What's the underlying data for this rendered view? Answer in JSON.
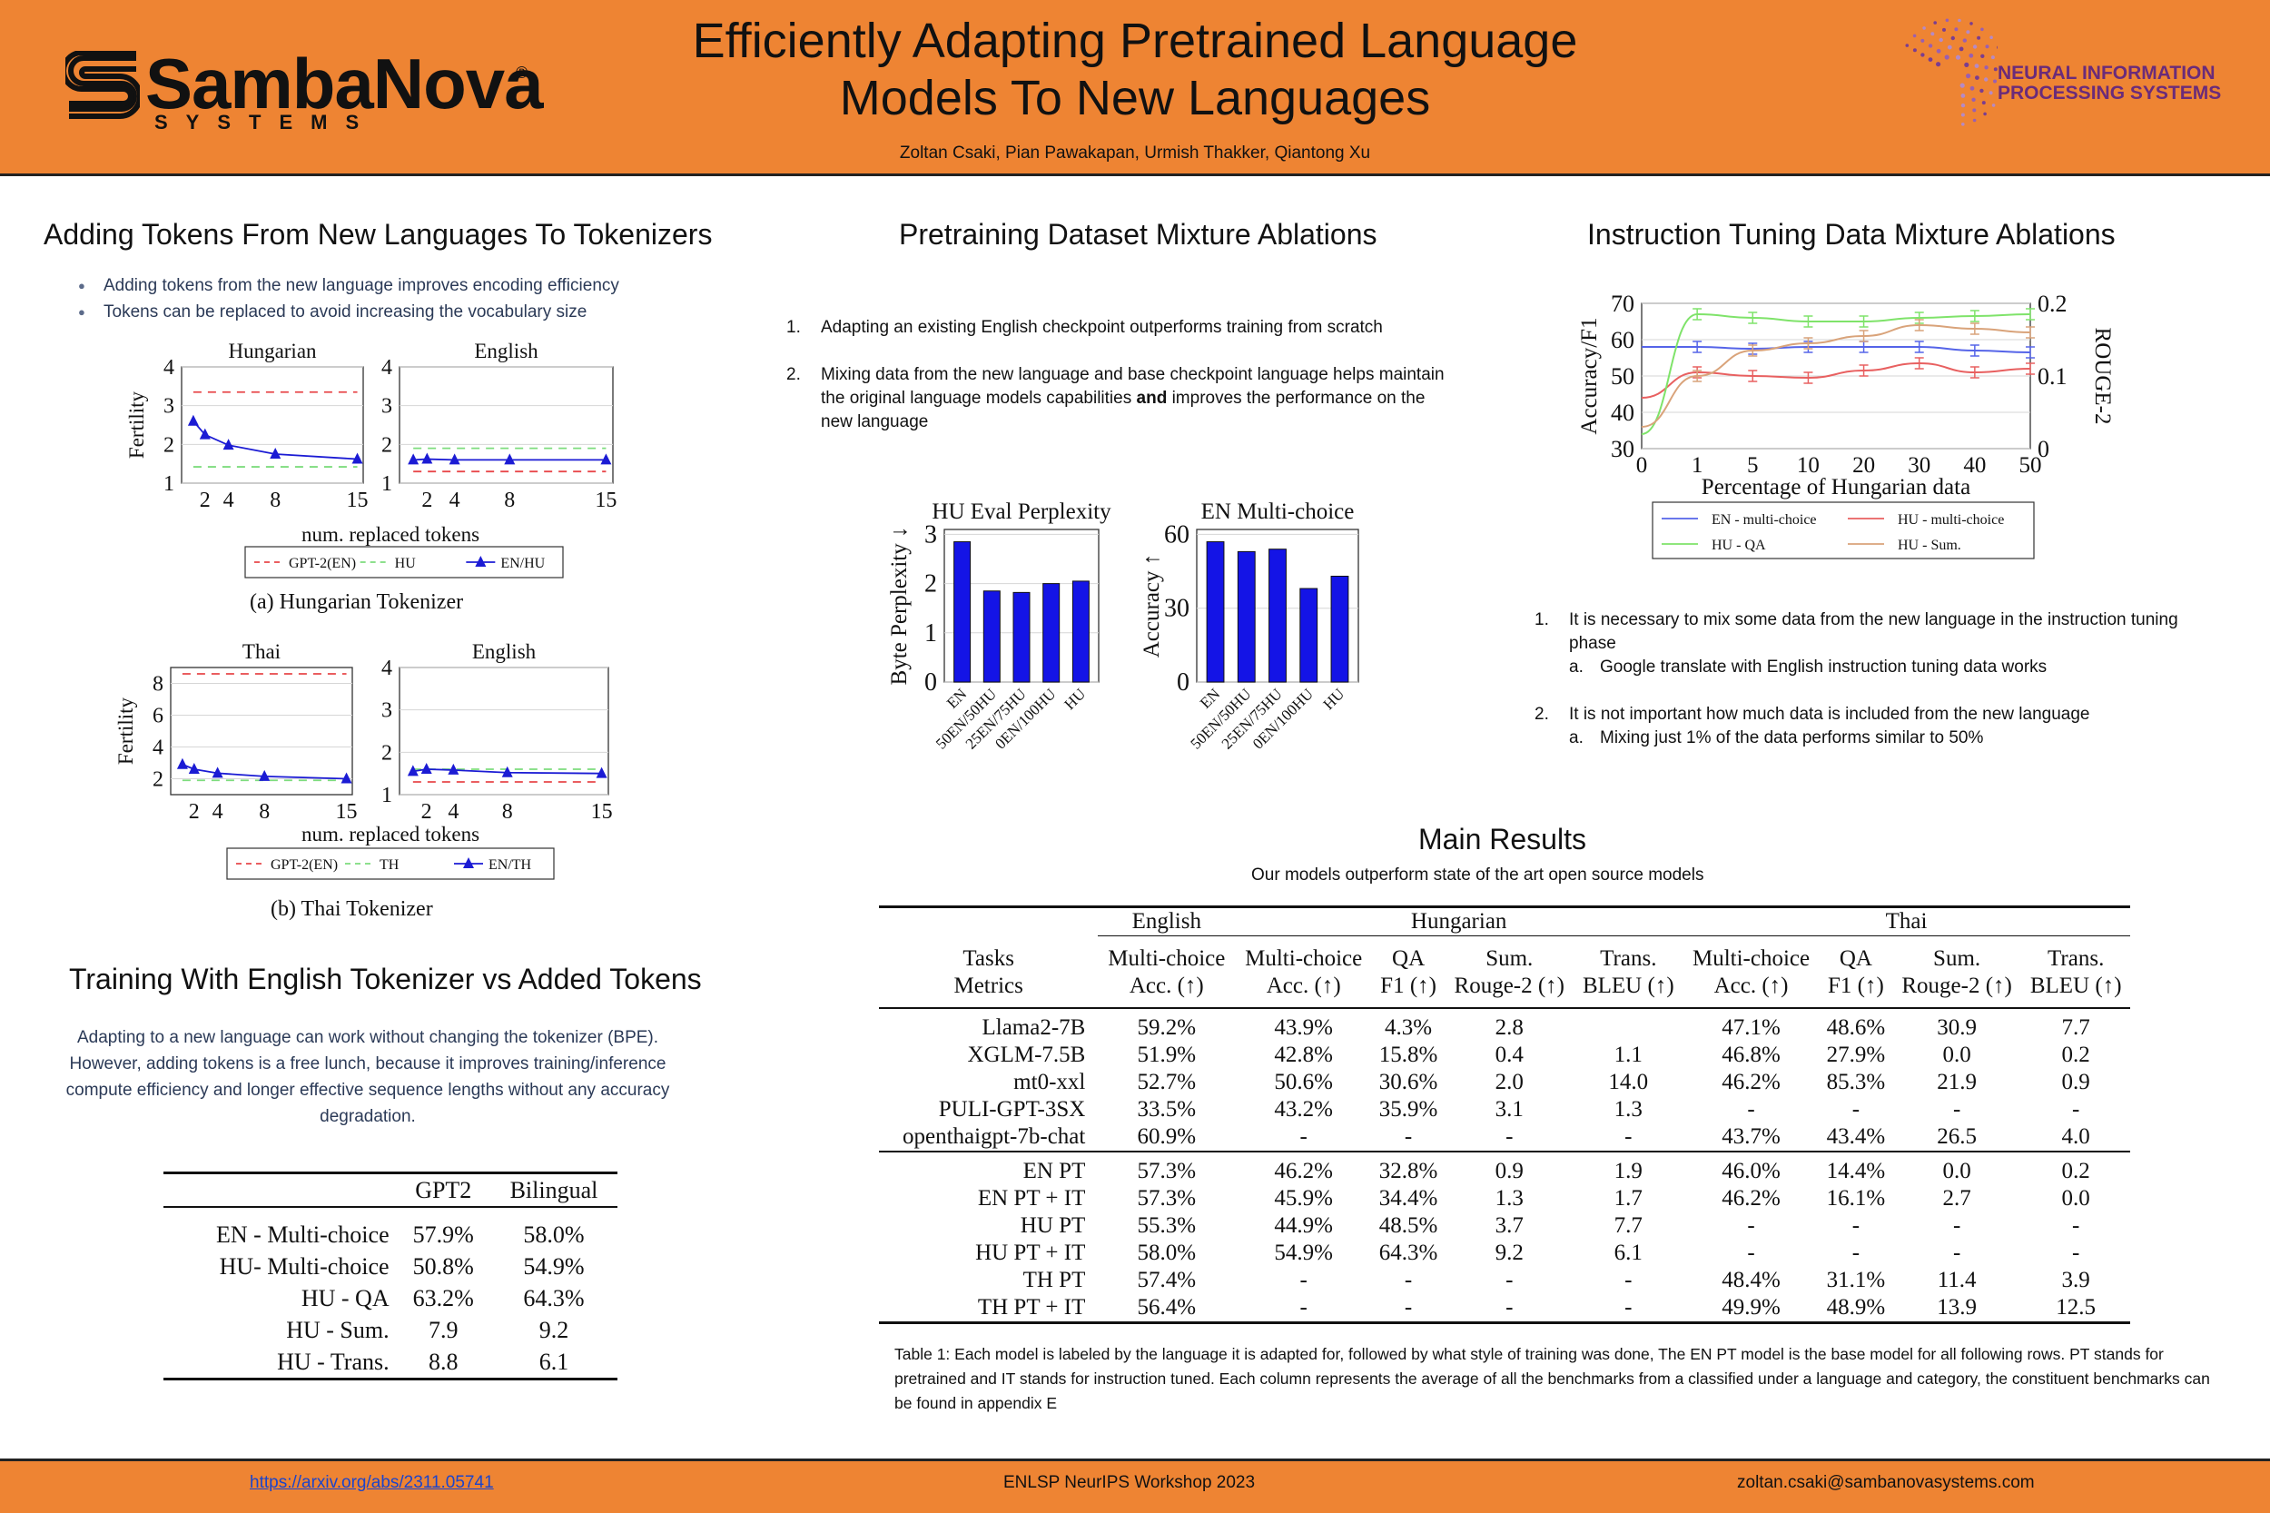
{
  "header": {
    "title": "Efficiently Adapting Pretrained Language\nModels To New Languages",
    "authors": "Zoltan Csaki, Pian Pawakapan, Urmish Thakker, Qiantong Xu",
    "logo_name": "SambaNova",
    "logo_registered": "®",
    "logo_sub": "SYSTEMS",
    "neurips_text": "NEURAL INFORMATION\nPROCESSING SYSTEMS",
    "header_color": "#ee8433"
  },
  "tokenizer_section": {
    "title": "Adding Tokens From New Languages To Tokenizers",
    "bullets": [
      "Adding tokens from the new language improves encoding efficiency",
      "Tokens can be replaced to avoid increasing the vocabulary size"
    ],
    "caption_a": "(a) Hungarian Tokenizer",
    "caption_b": "(b) Thai Tokenizer"
  },
  "training_section": {
    "title": "Training With English Tokenizer vs Added Tokens",
    "description": "Adapting to a new language can work without changing the tokenizer (BPE). However, adding tokens is a free lunch, because it improves training/inference compute efficiency and longer effective sequence lengths without any accuracy degradation.",
    "table": {
      "columns": [
        "GPT2",
        "Bilingual"
      ],
      "rows": [
        {
          "label": "EN - Multi-choice",
          "gpt2": "57.9%",
          "bilingual": "58.0%",
          "bold": "bilingual"
        },
        {
          "label": "HU- Multi-choice",
          "gpt2": "50.8%",
          "bilingual": "54.9%",
          "bold": "bilingual"
        },
        {
          "label": "HU - QA",
          "gpt2": "63.2%",
          "bilingual": "64.3%",
          "bold": "bilingual"
        },
        {
          "label": "HU - Sum.",
          "gpt2": "7.9",
          "bilingual": "9.2",
          "bold": "bilingual"
        },
        {
          "label": "HU - Trans.",
          "gpt2": "8.8",
          "bilingual": "6.1",
          "bold": "gpt2"
        }
      ]
    }
  },
  "pretraining_section": {
    "title": "Pretraining Dataset Mixture Ablations",
    "point1": "Adapting an existing English checkpoint outperforms training from scratch",
    "point2_pre": "Mixing data from the new language and base checkpoint language helps maintain the original language models capabilities ",
    "point2_bold": "and",
    "point2_post": " improves the performance on the new language"
  },
  "instruction_section": {
    "title": "Instruction Tuning Data Mixture Ablations",
    "point1": "It is necessary to mix some data from the new language in the instruction tuning phase",
    "point1a": "Google translate with English instruction tuning data works",
    "point2": "It is not important how much data is included from the new language",
    "point2a": "Mixing just 1% of the data performs similar to 50%"
  },
  "main_results": {
    "title": "Main Results",
    "subtitle": "Our models outperform state of the art open source models",
    "header_tasks": "Tasks",
    "header_metrics": "Metrics",
    "groups": [
      "English",
      "Hungarian",
      "Thai"
    ],
    "task_row": [
      "Multi-choice",
      "Multi-choice",
      "QA",
      "Sum.",
      "Trans.",
      "Multi-choice",
      "QA",
      "Sum.",
      "Trans."
    ],
    "metric_row": [
      "Acc. (↑)",
      "Acc. (↑)",
      "F1 (↑)",
      "Rouge-2 (↑)",
      "BLEU (↑)",
      "Acc. (↑)",
      "F1 (↑)",
      "Rouge-2 (↑)",
      "BLEU (↑)"
    ],
    "block1": [
      {
        "model": "Llama2-7B",
        "vals": [
          "59.2%",
          "43.9%",
          "4.3%",
          "2.8",
          "",
          "47.1%",
          "48.6%",
          "30.9",
          "7.7"
        ],
        "bold": [
          7
        ]
      },
      {
        "model": "XGLM-7.5B",
        "vals": [
          "51.9%",
          "42.8%",
          "15.8%",
          "0.4",
          "1.1",
          "46.8%",
          "27.9%",
          "0.0",
          "0.2"
        ],
        "bold": []
      },
      {
        "model": "mt0-xxl",
        "vals": [
          "52.7%",
          "50.6%",
          "30.6%",
          "2.0",
          "14.0",
          "46.2%",
          "85.3%",
          "21.9",
          "0.9"
        ],
        "bold": [
          4,
          6
        ]
      },
      {
        "model": "PULI-GPT-3SX",
        "vals": [
          "33.5%",
          "43.2%",
          "35.9%",
          "3.1",
          "1.3",
          "-",
          "-",
          "-",
          "-"
        ],
        "bold": []
      },
      {
        "model": "openthaigpt-7b-chat",
        "vals": [
          "60.9%",
          "-",
          "-",
          "-",
          "-",
          "43.7%",
          "43.4%",
          "26.5",
          "4.0"
        ],
        "bold": [
          0
        ]
      }
    ],
    "block2": [
      {
        "model": "EN PT",
        "vals": [
          "57.3%",
          "46.2%",
          "32.8%",
          "0.9",
          "1.9",
          "46.0%",
          "14.4%",
          "0.0",
          "0.2"
        ],
        "bold": []
      },
      {
        "model": "EN PT + IT",
        "vals": [
          "57.3%",
          "45.9%",
          "34.4%",
          "1.3",
          "1.7",
          "46.2%",
          "16.1%",
          "2.7",
          "0.0"
        ],
        "bold": []
      },
      {
        "model": "HU PT",
        "vals": [
          "55.3%",
          "44.9%",
          "48.5%",
          "3.7",
          "7.7",
          "-",
          "-",
          "-",
          "-"
        ],
        "bold": []
      },
      {
        "model": "HU PT + IT",
        "vals": [
          "58.0%",
          "54.9%",
          "64.3%",
          "9.2",
          "6.1",
          "-",
          "-",
          "-",
          "-"
        ],
        "bold": [
          1,
          2,
          3
        ]
      },
      {
        "model": "TH PT",
        "vals": [
          "57.4%",
          "-",
          "-",
          "-",
          "-",
          "48.4%",
          "31.1%",
          "11.4",
          "3.9"
        ],
        "bold": []
      },
      {
        "model": "TH PT + IT",
        "vals": [
          "56.4%",
          "-",
          "-",
          "-",
          "-",
          "49.9%",
          "48.9%",
          "13.9",
          "12.5"
        ],
        "bold": [
          5,
          8
        ]
      }
    ],
    "caption": "Table 1: Each model is labeled by the language it is adapted for, followed by what style of training was done, The EN PT model is the base model for all following rows. PT stands for pretrained and IT stands for instruction tuned. Each column represents the average of all the benchmarks from a classified under a language and category, the constituent benchmarks can be found in appendix E"
  },
  "footer": {
    "link": "https://arxiv.org/abs/2311.05741",
    "center": "ENLSP NeurIPS Workshop 2023",
    "email": "zoltan.csaki@sambanovasystems.com"
  },
  "chart_data": [
    {
      "id": "hu-fertility-hungarian",
      "type": "line",
      "title": "Hungarian",
      "xlabel": "num. replaced tokens",
      "ylabel": "Fertility",
      "xticks": [
        2,
        4,
        8,
        15
      ],
      "yticks": [
        1,
        2,
        3,
        4
      ],
      "xlim": [
        0,
        15.5
      ],
      "ylim": [
        1,
        4
      ],
      "x": [
        1,
        2,
        4,
        8,
        15
      ],
      "series": [
        {
          "name": "GPT-2(EN)",
          "color": "#e8474a",
          "style": "dashed",
          "values": [
            3.35,
            3.35,
            3.35,
            3.35,
            3.35
          ]
        },
        {
          "name": "HU",
          "color": "#7ddc7d",
          "style": "dashed",
          "values": [
            1.42,
            1.42,
            1.42,
            1.42,
            1.42
          ]
        },
        {
          "name": "EN/HU",
          "color": "#1b1bd4",
          "style": "solid-triangle",
          "values": [
            2.6,
            2.25,
            1.98,
            1.75,
            1.62
          ]
        }
      ]
    },
    {
      "id": "hu-fertility-english",
      "type": "line",
      "title": "English",
      "xlabel": "num. replaced tokens",
      "ylabel": "",
      "xticks": [
        2,
        4,
        8,
        15
      ],
      "yticks": [
        1,
        2,
        3,
        4
      ],
      "xlim": [
        0,
        15.5
      ],
      "ylim": [
        1,
        4
      ],
      "x": [
        1,
        2,
        4,
        8,
        15
      ],
      "series": [
        {
          "name": "GPT-2(EN)",
          "color": "#e8474a",
          "style": "dashed",
          "values": [
            1.3,
            1.3,
            1.3,
            1.3,
            1.3
          ]
        },
        {
          "name": "HU",
          "color": "#7ddc7d",
          "style": "dashed",
          "values": [
            1.9,
            1.9,
            1.9,
            1.9,
            1.9
          ]
        },
        {
          "name": "EN/HU",
          "color": "#1b1bd4",
          "style": "solid-triangle",
          "values": [
            1.6,
            1.62,
            1.6,
            1.6,
            1.6
          ]
        }
      ]
    },
    {
      "id": "th-fertility-thai",
      "type": "line",
      "title": "Thai",
      "xlabel": "num. replaced tokens",
      "ylabel": "Fertility",
      "xticks": [
        2,
        4,
        8,
        15
      ],
      "yticks": [
        2,
        4,
        6,
        8
      ],
      "xlim": [
        0,
        15.5
      ],
      "ylim": [
        1,
        9
      ],
      "x": [
        1,
        2,
        4,
        8,
        15
      ],
      "series": [
        {
          "name": "GPT-2(EN)",
          "color": "#e8474a",
          "style": "dashed",
          "values": [
            8.6,
            8.6,
            8.6,
            8.6,
            8.6
          ]
        },
        {
          "name": "TH",
          "color": "#7ddc7d",
          "style": "dashed",
          "values": [
            1.9,
            1.9,
            1.9,
            1.9,
            1.9
          ]
        },
        {
          "name": "EN/TH",
          "color": "#1b1bd4",
          "style": "solid-triangle",
          "values": [
            2.9,
            2.6,
            2.35,
            2.15,
            2.0
          ]
        }
      ]
    },
    {
      "id": "th-fertility-english",
      "type": "line",
      "title": "English",
      "xlabel": "num. replaced tokens",
      "ylabel": "",
      "xticks": [
        2,
        4,
        8,
        15
      ],
      "yticks": [
        1,
        2,
        3,
        4
      ],
      "xlim": [
        0,
        15.5
      ],
      "ylim": [
        1,
        4
      ],
      "x": [
        1,
        2,
        4,
        8,
        15
      ],
      "series": [
        {
          "name": "GPT-2(EN)",
          "color": "#e8474a",
          "style": "dashed",
          "values": [
            1.3,
            1.3,
            1.3,
            1.3,
            1.3
          ]
        },
        {
          "name": "TH",
          "color": "#7ddc7d",
          "style": "dashed",
          "values": [
            1.6,
            1.6,
            1.6,
            1.6,
            1.6
          ]
        },
        {
          "name": "EN/TH",
          "color": "#1b1bd4",
          "style": "solid-triangle",
          "values": [
            1.55,
            1.6,
            1.58,
            1.52,
            1.5
          ]
        }
      ]
    },
    {
      "id": "hu-eval-perplexity",
      "type": "bar",
      "title": "HU Eval Perplexity",
      "ylabel": "Byte Perplexity ↓",
      "categories": [
        "EN",
        "50EN/50HU",
        "25EN/75HU",
        "0EN/100HU",
        "HU"
      ],
      "values": [
        2.85,
        1.85,
        1.82,
        2.0,
        2.05
      ],
      "yticks": [
        0,
        1,
        2,
        3
      ],
      "ylim": [
        0,
        3.1
      ],
      "color": "#1414e6"
    },
    {
      "id": "en-multi-choice",
      "type": "bar",
      "title": "EN Multi-choice",
      "ylabel": "Accuracy ↑",
      "categories": [
        "EN",
        "50EN/50HU",
        "25EN/75HU",
        "0EN/100HU",
        "HU"
      ],
      "values": [
        57,
        53,
        54,
        38,
        43
      ],
      "yticks": [
        0,
        30,
        60
      ],
      "ylim": [
        0,
        62
      ],
      "color": "#1414e6"
    },
    {
      "id": "instruction-tuning-ablation",
      "type": "line",
      "title": "",
      "xlabel": "Percentage of Hungarian data",
      "ylabel": "Accuracy/F1",
      "y2label": "ROUGE-2",
      "categories": [
        "0",
        "1",
        "5",
        "10",
        "20",
        "30",
        "40",
        "50"
      ],
      "ylim": [
        30,
        70
      ],
      "yticks": [
        30,
        40,
        50,
        60,
        70
      ],
      "y2lim": [
        0,
        0.2
      ],
      "y2ticks": [
        "0",
        "0.1",
        "0.2"
      ],
      "series": [
        {
          "name": "EN - multi-choice",
          "axis": "left",
          "color": "#5564e8",
          "values": [
            58,
            58,
            57.5,
            58,
            58,
            58,
            57,
            56.5
          ]
        },
        {
          "name": "HU - multi-choice",
          "axis": "left",
          "color": "#e86060",
          "values": [
            44,
            51,
            50,
            49.5,
            51.5,
            53.5,
            51,
            52
          ]
        },
        {
          "name": "HU - QA",
          "axis": "left",
          "color": "#7fe36a",
          "values": [
            34,
            67,
            66,
            65,
            65,
            66,
            66.5,
            67
          ]
        },
        {
          "name": "HU - Sum.",
          "axis": "right",
          "color": "#d9a37a",
          "values": [
            0.03,
            0.1,
            0.135,
            0.145,
            0.155,
            0.17,
            0.165,
            0.16
          ]
        }
      ]
    }
  ]
}
